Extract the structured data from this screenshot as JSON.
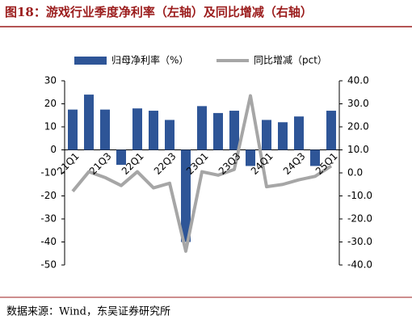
{
  "chart_data": {
    "type": "bar",
    "title": "图18：游戏行业季度净利率（左轴）及同比增减（右轴）",
    "source": "数据来源：Wind，东吴证券研究所",
    "categories": [
      "21Q1",
      null,
      "21Q3",
      null,
      "22Q1",
      null,
      "22Q3",
      null,
      "23Q1",
      null,
      "23Q3",
      null,
      "24Q1",
      null,
      "24Q3",
      null,
      "25Q1"
    ],
    "series": [
      {
        "name": "归母净利率（%）",
        "type": "bar",
        "color": "#2e5597",
        "values": [
          17.5,
          24,
          17.5,
          -6.5,
          18,
          17,
          13,
          -40,
          19,
          16,
          17,
          -7,
          13,
          12,
          14.5,
          -7,
          17
        ]
      },
      {
        "name": "同比增减（pct）",
        "type": "line",
        "axis": "y2",
        "color": "#a6a6a6",
        "values": [
          -8,
          0.5,
          -2,
          -5.5,
          0.5,
          -6.5,
          -4.5,
          -34,
          0.5,
          -1,
          1.5,
          33.5,
          -6,
          -5,
          -3,
          -1.5,
          3
        ]
      }
    ],
    "ylim": [
      -50,
      30
    ],
    "yticks": [
      -50,
      -40,
      -30,
      -20,
      -10,
      0,
      10,
      20,
      30
    ],
    "y2lim": [
      -40,
      40
    ],
    "y2ticks": [
      {
        "value": -40,
        "label": "-40.0"
      },
      {
        "value": -30,
        "label": "-30.0"
      },
      {
        "value": -20,
        "label": "-20.0"
      },
      {
        "value": -10,
        "label": "-10.0"
      },
      {
        "value": 0,
        "label": "0.0"
      },
      {
        "value": 10,
        "label": "10.0"
      },
      {
        "value": 20,
        "label": "20.0"
      },
      {
        "value": 30,
        "label": "30.0"
      },
      {
        "value": 40,
        "label": "40.0"
      }
    ]
  }
}
